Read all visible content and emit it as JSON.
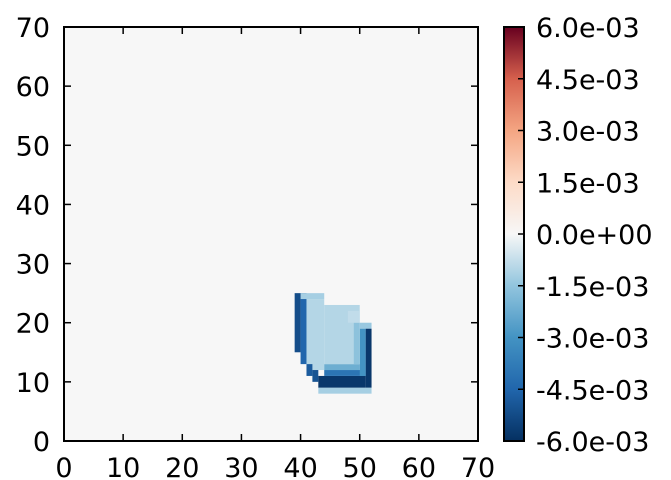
{
  "chart_data": {
    "type": "heatmap",
    "title": "",
    "xlabel": "",
    "ylabel": "",
    "xlim": [
      0,
      70
    ],
    "ylim": [
      0,
      70
    ],
    "x_ticks": [
      "0",
      "10",
      "20",
      "30",
      "40",
      "50",
      "60",
      "70"
    ],
    "y_ticks": [
      "0",
      "10",
      "20",
      "30",
      "40",
      "50",
      "60",
      "70"
    ],
    "grid": false,
    "colormap": "RdBu_r",
    "background_value": 0.0,
    "vmin": -0.006,
    "vmax": 0.006,
    "colorbar": {
      "position": "right",
      "ticks": [
        0.006,
        0.0045,
        0.003,
        0.0015,
        0.0,
        -0.0015,
        -0.003,
        -0.0045,
        -0.006
      ],
      "tick_labels": [
        "6.0e-03",
        "4.5e-03",
        "3.0e-03",
        "1.5e-03",
        "0.0e+00",
        "-1.5e-03",
        "-3.0e-03",
        "-4.5e-03",
        "-6.0e-03"
      ]
    },
    "anomaly_cells": [
      {
        "x": [
          39,
          40
        ],
        "y": [
          15,
          25
        ],
        "value": -0.0052
      },
      {
        "x": [
          40,
          41
        ],
        "y": [
          13,
          25
        ],
        "value": -0.0045
      },
      {
        "x": [
          40,
          44
        ],
        "y": [
          24,
          25
        ],
        "value": -0.0012
      },
      {
        "x": [
          41,
          44
        ],
        "y": [
          12,
          24
        ],
        "value": -0.001
      },
      {
        "x": [
          41,
          42
        ],
        "y": [
          11,
          13
        ],
        "value": -0.0048
      },
      {
        "x": [
          42,
          43
        ],
        "y": [
          10,
          12
        ],
        "value": -0.005
      },
      {
        "x": [
          43,
          51
        ],
        "y": [
          9,
          11
        ],
        "value": -0.0058
      },
      {
        "x": [
          51,
          52
        ],
        "y": [
          9,
          19
        ],
        "value": -0.0058
      },
      {
        "x": [
          44,
          51
        ],
        "y": [
          11,
          12
        ],
        "value": -0.004
      },
      {
        "x": [
          44,
          50
        ],
        "y": [
          12,
          13
        ],
        "value": -0.0022
      },
      {
        "x": [
          50,
          51
        ],
        "y": [
          11,
          19
        ],
        "value": -0.003
      },
      {
        "x": [
          44,
          50
        ],
        "y": [
          13,
          23
        ],
        "value": -0.001
      },
      {
        "x": [
          49,
          50
        ],
        "y": [
          13,
          20
        ],
        "value": -0.0016
      },
      {
        "x": [
          48,
          50
        ],
        "y": [
          20,
          22
        ],
        "value": -0.0008
      },
      {
        "x": [
          50,
          52
        ],
        "y": [
          19,
          20
        ],
        "value": -0.0014
      },
      {
        "x": [
          43,
          52
        ],
        "y": [
          8,
          9
        ],
        "value": -0.0012
      }
    ]
  }
}
